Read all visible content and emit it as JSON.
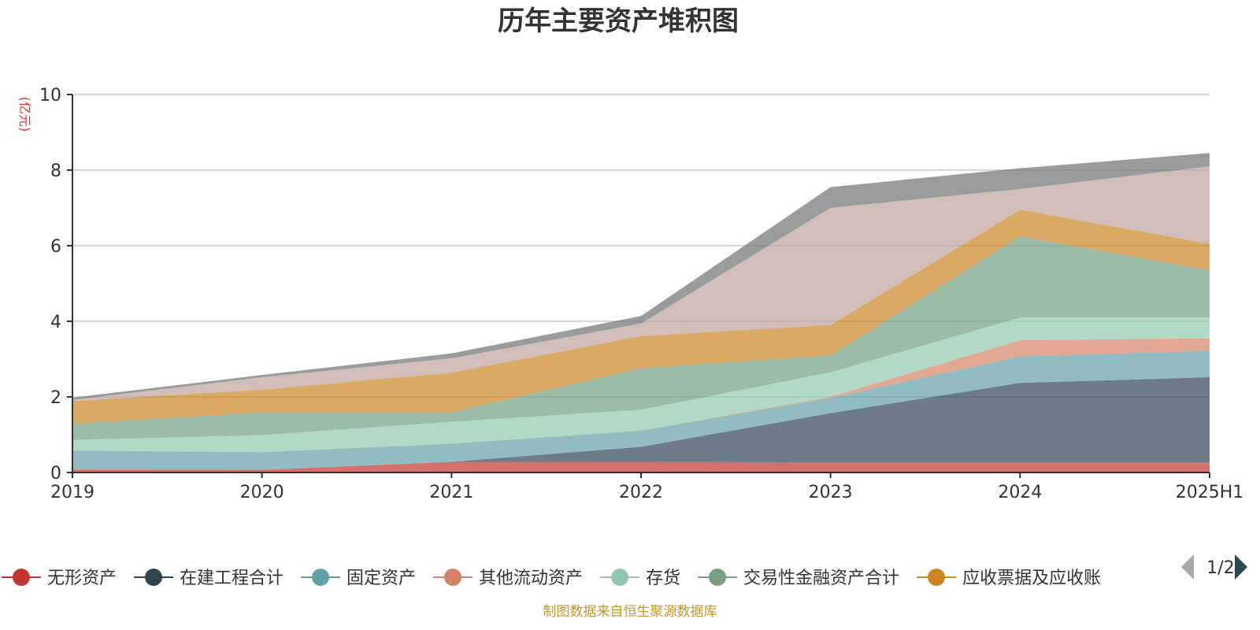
{
  "chart_data": {
    "type": "area",
    "stacked": true,
    "title": "历年主要资产堆积图",
    "unit_label": "(亿元)",
    "categories": [
      "2019",
      "2020",
      "2021",
      "2022",
      "2023",
      "2024",
      "2025H1"
    ],
    "ylim": [
      0,
      10
    ],
    "yticks": [
      0,
      2,
      4,
      6,
      8,
      10
    ],
    "grid": true,
    "series": [
      {
        "name": "无形资产",
        "color": "#c23531",
        "values": [
          0.08,
          0.07,
          0.28,
          0.28,
          0.27,
          0.27,
          0.27
        ]
      },
      {
        "name": "在建工程合计",
        "color": "#2f4554",
        "values": [
          0.0,
          0.0,
          0.0,
          0.4,
          1.3,
          2.1,
          2.25
        ]
      },
      {
        "name": "固定资产",
        "color": "#61a0a8",
        "values": [
          0.5,
          0.47,
          0.48,
          0.43,
          0.4,
          0.7,
          0.7
        ]
      },
      {
        "name": "其他流动资产",
        "color": "#d48265",
        "values": [
          0.0,
          0.0,
          0.0,
          0.0,
          0.03,
          0.43,
          0.33
        ]
      },
      {
        "name": "存货",
        "color": "#91c7ae",
        "values": [
          0.28,
          0.45,
          0.58,
          0.55,
          0.65,
          0.6,
          0.55
        ]
      },
      {
        "name": "交易性金融资产合计",
        "color": "#749f83",
        "values": [
          0.43,
          0.6,
          0.25,
          1.1,
          0.45,
          2.15,
          1.25
        ]
      },
      {
        "name": "应收票据及应收账",
        "color": "#ca8622",
        "values": [
          0.6,
          0.6,
          1.05,
          0.85,
          0.8,
          0.7,
          0.7
        ]
      },
      {
        "name": "",
        "color": "#bda29a",
        "values": [
          0.03,
          0.33,
          0.38,
          0.33,
          3.1,
          0.55,
          2.05
        ]
      },
      {
        "name": "",
        "color": "#6e7074",
        "values": [
          0.06,
          0.06,
          0.13,
          0.2,
          0.55,
          0.55,
          0.35
        ]
      }
    ],
    "legend": {
      "position": "bottom",
      "page": "1/2"
    },
    "source_note": "制图数据来自恒生聚源数据库"
  }
}
